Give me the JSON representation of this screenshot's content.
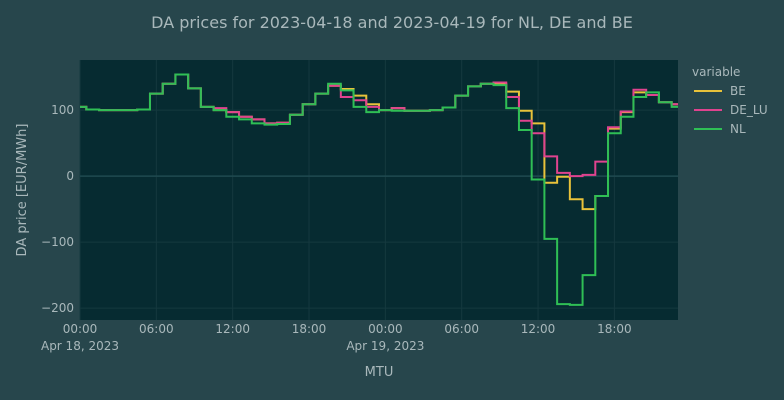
{
  "chart_data": {
    "type": "line",
    "line_shape": "step",
    "title": "DA prices for 2023-04-18 and 2023-04-19 for NL, DE and BE",
    "xlabel": "MTU",
    "ylabel": "DA price [EUR/MWh]",
    "x_start": "2023-04-18 00:00",
    "x_step_hours": 1,
    "xlim": [
      "2023-04-18 00:00",
      "2023-04-19 23:00"
    ],
    "ylim": [
      -218,
      176
    ],
    "x_ticks": [
      {
        "h": 0,
        "time": "00:00",
        "date": "Apr 18, 2023"
      },
      {
        "h": 6,
        "time": "06:00",
        "date": ""
      },
      {
        "h": 12,
        "time": "12:00",
        "date": ""
      },
      {
        "h": 18,
        "time": "18:00",
        "date": ""
      },
      {
        "h": 24,
        "time": "00:00",
        "date": "Apr 19, 2023"
      },
      {
        "h": 30,
        "time": "06:00",
        "date": ""
      },
      {
        "h": 36,
        "time": "12:00",
        "date": ""
      },
      {
        "h": 42,
        "time": "18:00",
        "date": ""
      }
    ],
    "y_ticks": [
      100,
      0,
      -100,
      -200
    ],
    "y_tick_labels": [
      "100",
      "0",
      "−100",
      "−200"
    ],
    "legend_title": "variable",
    "legend_position": "right",
    "grid": true,
    "colors": {
      "BE": "#e8c23a",
      "DE_LU": "#e0438f",
      "NL": "#2fbf55",
      "background": "#27464c",
      "plot_bg": "#062b31",
      "grid": "#15393f",
      "text": "#a9b8bb"
    },
    "series": [
      {
        "name": "BE",
        "values": [
          105,
          101,
          100,
          100,
          100,
          101,
          125,
          140,
          154,
          133,
          105,
          100,
          97,
          90,
          86,
          80,
          81,
          93,
          109,
          125,
          137,
          132,
          122,
          109,
          100,
          103,
          99,
          99,
          100,
          104,
          122,
          136,
          140,
          140,
          128,
          99,
          80,
          -10,
          -1,
          -35,
          -50,
          -30,
          72,
          97,
          127,
          123,
          112,
          109
        ]
      },
      {
        "name": "DE_LU",
        "values": [
          105,
          101,
          100,
          100,
          100,
          101,
          125,
          140,
          154,
          133,
          105,
          103,
          97,
          90,
          86,
          80,
          81,
          93,
          109,
          125,
          137,
          120,
          115,
          105,
          100,
          103,
          99,
          99,
          100,
          104,
          122,
          136,
          140,
          142,
          120,
          84,
          65,
          30,
          5,
          0,
          2,
          22,
          74,
          98,
          131,
          123,
          112,
          109
        ]
      },
      {
        "name": "NL",
        "values": [
          105,
          101,
          100,
          100,
          100,
          101,
          125,
          140,
          154,
          133,
          105,
          100,
          90,
          86,
          80,
          78,
          79,
          93,
          109,
          125,
          140,
          130,
          105,
          97,
          100,
          99,
          99,
          99,
          100,
          104,
          122,
          136,
          140,
          138,
          103,
          70,
          -5,
          -95,
          -194,
          -195,
          -150,
          -30,
          65,
          90,
          120,
          127,
          112,
          105
        ]
      }
    ]
  }
}
